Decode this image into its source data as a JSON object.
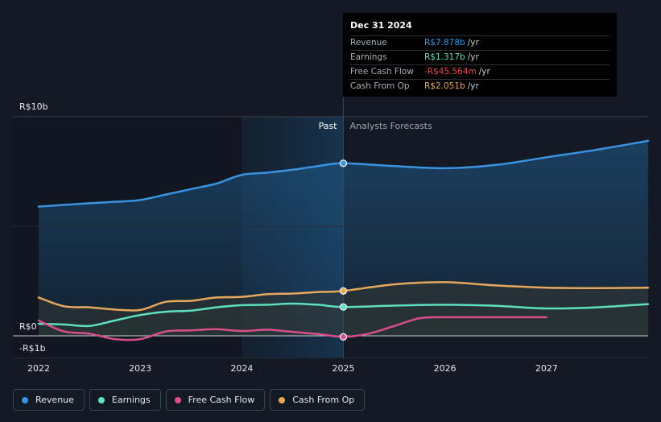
{
  "chart_data": {
    "type": "line",
    "title": "",
    "y_axis_labels": {
      "top": "R$10b",
      "zero": "R$0",
      "bottom": "-R$1b"
    },
    "ylim": [
      -1,
      10
    ],
    "xlim": [
      2022,
      2028
    ],
    "x_ticks": [
      2022,
      2023,
      2024,
      2025,
      2026,
      2027
    ],
    "x_tick_labels": [
      "2022",
      "2023",
      "2024",
      "2025",
      "2026",
      "2027"
    ],
    "past_label": "Past",
    "forecast_label": "Analysts Forecasts",
    "divider_x": 2025.0,
    "highlight_range": [
      2024.0,
      2025.0
    ],
    "series": [
      {
        "name": "Revenue",
        "color": "#3a93e0",
        "past": [
          [
            2022,
            5.9
          ],
          [
            2022.5,
            6.05
          ],
          [
            2022.75,
            6.12
          ],
          [
            2023,
            6.2
          ],
          [
            2023.25,
            6.45
          ],
          [
            2023.5,
            6.7
          ],
          [
            2023.75,
            6.95
          ],
          [
            2024,
            7.35
          ],
          [
            2024.25,
            7.45
          ],
          [
            2024.5,
            7.58
          ],
          [
            2024.75,
            7.75
          ],
          [
            2025,
            7.878
          ]
        ],
        "forecast": [
          [
            2025,
            7.878
          ],
          [
            2025.5,
            7.75
          ],
          [
            2026,
            7.65
          ],
          [
            2026.5,
            7.8
          ],
          [
            2027,
            8.15
          ],
          [
            2027.5,
            8.5
          ],
          [
            2028,
            8.9
          ]
        ]
      },
      {
        "name": "Earnings",
        "color": "#5ee0c0",
        "past": [
          [
            2022,
            0.55
          ],
          [
            2022.25,
            0.52
          ],
          [
            2022.5,
            0.45
          ],
          [
            2022.75,
            0.7
          ],
          [
            2023,
            0.95
          ],
          [
            2023.25,
            1.1
          ],
          [
            2023.5,
            1.15
          ],
          [
            2023.75,
            1.3
          ],
          [
            2024,
            1.4
          ],
          [
            2024.25,
            1.42
          ],
          [
            2024.5,
            1.47
          ],
          [
            2024.75,
            1.42
          ],
          [
            2025,
            1.317
          ]
        ],
        "forecast": [
          [
            2025,
            1.317
          ],
          [
            2025.5,
            1.38
          ],
          [
            2026,
            1.42
          ],
          [
            2026.5,
            1.37
          ],
          [
            2027,
            1.25
          ],
          [
            2027.5,
            1.3
          ],
          [
            2028,
            1.45
          ]
        ]
      },
      {
        "name": "Free Cash Flow",
        "color": "#d94f8b",
        "past": [
          [
            2022,
            0.7
          ],
          [
            2022.25,
            0.2
          ],
          [
            2022.5,
            0.1
          ],
          [
            2022.75,
            -0.15
          ],
          [
            2023,
            -0.15
          ],
          [
            2023.25,
            0.2
          ],
          [
            2023.5,
            0.25
          ],
          [
            2023.75,
            0.3
          ],
          [
            2024,
            0.22
          ],
          [
            2024.25,
            0.28
          ],
          [
            2024.5,
            0.18
          ],
          [
            2024.75,
            0.08
          ],
          [
            2025,
            -0.0456
          ]
        ],
        "forecast": [
          [
            2025,
            -0.0456
          ],
          [
            2025.25,
            0.1
          ],
          [
            2025.5,
            0.45
          ],
          [
            2025.75,
            0.8
          ],
          [
            2026,
            0.85
          ],
          [
            2026.5,
            0.85
          ],
          [
            2027,
            0.85
          ]
        ]
      },
      {
        "name": "Cash From Op",
        "color": "#e8a85c",
        "past": [
          [
            2022,
            1.75
          ],
          [
            2022.25,
            1.35
          ],
          [
            2022.5,
            1.3
          ],
          [
            2022.75,
            1.2
          ],
          [
            2023,
            1.18
          ],
          [
            2023.25,
            1.55
          ],
          [
            2023.5,
            1.6
          ],
          [
            2023.75,
            1.75
          ],
          [
            2024,
            1.78
          ],
          [
            2024.25,
            1.9
          ],
          [
            2024.5,
            1.93
          ],
          [
            2024.75,
            2.0
          ],
          [
            2025,
            2.051
          ]
        ],
        "forecast": [
          [
            2025,
            2.051
          ],
          [
            2025.5,
            2.35
          ],
          [
            2026,
            2.45
          ],
          [
            2026.5,
            2.3
          ],
          [
            2027,
            2.2
          ],
          [
            2027.5,
            2.18
          ],
          [
            2028,
            2.2
          ]
        ]
      }
    ]
  },
  "tooltip": {
    "date": "Dec 31 2024",
    "rows": [
      {
        "label": "Revenue",
        "value": "R$7.878b",
        "unit": "/yr",
        "color": "#3a93e0"
      },
      {
        "label": "Earnings",
        "value": "R$1.317b",
        "unit": "/yr",
        "color": "#5ee0c0"
      },
      {
        "label": "Free Cash Flow",
        "value": "-R$45.564m",
        "unit": "/yr",
        "color": "#e84a4a"
      },
      {
        "label": "Cash From Op",
        "value": "R$2.051b",
        "unit": "/yr",
        "color": "#e8a85c"
      }
    ]
  },
  "legend": [
    {
      "label": "Revenue",
      "color": "#3a93e0"
    },
    {
      "label": "Earnings",
      "color": "#5ee0c0"
    },
    {
      "label": "Free Cash Flow",
      "color": "#d94f8b"
    },
    {
      "label": "Cash From Op",
      "color": "#e8a85c"
    }
  ]
}
